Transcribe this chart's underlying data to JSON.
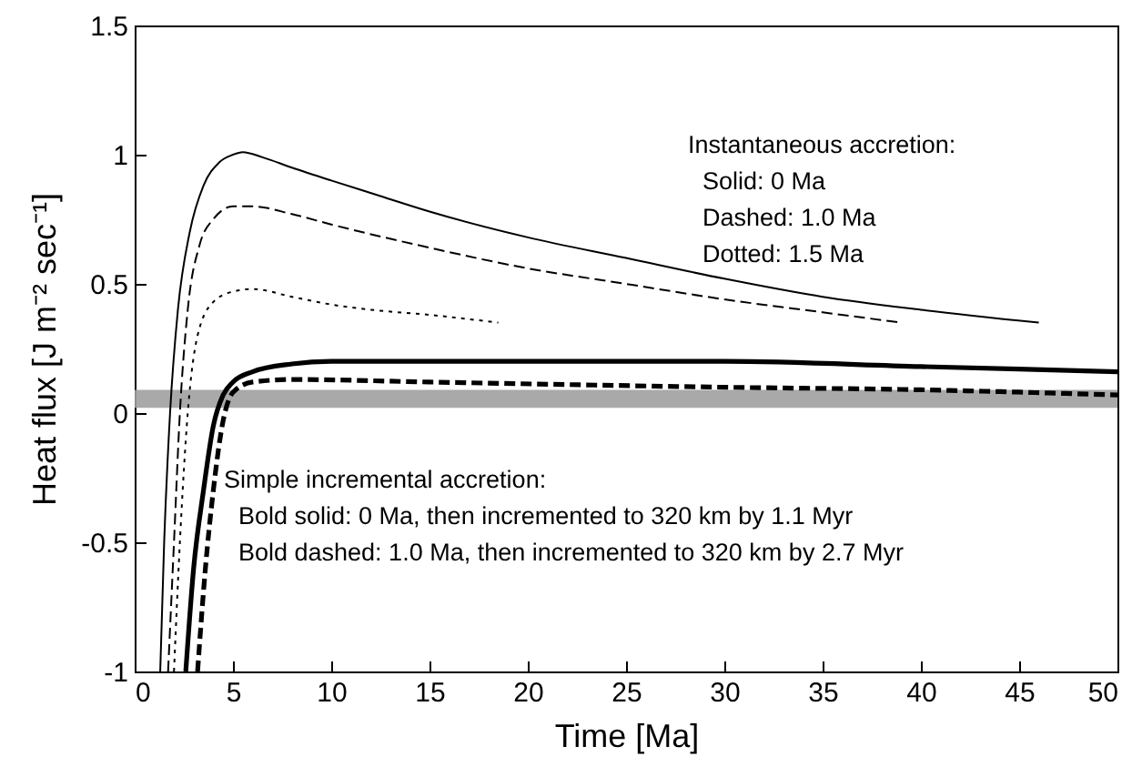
{
  "chart_data": {
    "type": "line",
    "xlabel": "Time [Ma]",
    "ylabel": "Heat flux [J m⁻² sec⁻¹]",
    "xlim": [
      0,
      50
    ],
    "xticks": [
      0,
      5,
      10,
      15,
      20,
      25,
      30,
      35,
      40,
      45,
      50
    ],
    "ylim": [
      -1,
      1.5
    ],
    "yticks": [
      -1,
      -0.5,
      0,
      0.5,
      1,
      1.5
    ],
    "grid": false,
    "series": [
      {
        "color": "#000000",
        "line_style": "solid",
        "x": [
          1.3,
          1.5,
          1.8,
          2.2,
          2.8,
          3.5,
          4.3,
          5,
          5.5,
          6.5,
          8,
          10,
          12.5,
          15,
          20,
          25,
          30,
          35,
          40,
          46
        ],
        "values": [
          -1,
          -0.5,
          0,
          0.4,
          0.7,
          0.88,
          0.97,
          1.0,
          1.01,
          0.99,
          0.95,
          0.9,
          0.84,
          0.78,
          0.68,
          0.6,
          0.52,
          0.45,
          0.4,
          0.35
        ]
      },
      {
        "color": "#000000",
        "line_style": "dashed",
        "x": [
          1.7,
          2,
          2.3,
          2.7,
          3.3,
          4,
          5,
          6,
          8,
          10,
          15,
          20,
          25,
          30,
          35,
          39
        ],
        "values": [
          -1,
          -0.5,
          0,
          0.4,
          0.65,
          0.75,
          0.8,
          0.8,
          0.77,
          0.73,
          0.64,
          0.56,
          0.5,
          0.44,
          0.39,
          0.35
        ]
      },
      {
        "color": "#000000",
        "line_style": "dotted",
        "x": [
          2,
          2.3,
          2.7,
          3.2,
          4,
          5,
          6,
          8,
          10,
          12,
          15,
          18.5
        ],
        "values": [
          -1,
          -0.5,
          0,
          0.3,
          0.43,
          0.47,
          0.48,
          0.45,
          0.42,
          0.4,
          0.38,
          0.35
        ]
      },
      {
        "color": "#000000",
        "line_style": "solid",
        "x": [
          2.6,
          3,
          3.5,
          4,
          4.5,
          5,
          6,
          8,
          10,
          15,
          20,
          30,
          40,
          50
        ],
        "values": [
          -1,
          -0.6,
          -0.3,
          -0.05,
          0.07,
          0.12,
          0.16,
          0.19,
          0.2,
          0.2,
          0.2,
          0.2,
          0.18,
          0.16
        ]
      },
      {
        "color": "#000000",
        "line_style": "dashed",
        "x": [
          3.2,
          3.6,
          4,
          4.5,
          5,
          6,
          8,
          15,
          30,
          40,
          50
        ],
        "values": [
          -1,
          -0.6,
          -0.3,
          -0.03,
          0.08,
          0.12,
          0.13,
          0.12,
          0.1,
          0.09,
          0.07
        ]
      }
    ],
    "bands": [
      {
        "axis": "y",
        "from": 0.02,
        "to": 0.09,
        "color": "#a0a0a0"
      }
    ],
    "annotations": [
      "Instantaneous accretion:",
      "Solid: 0 Ma",
      "Dashed: 1.0 Ma",
      "Dotted: 1.5 Ma",
      "Simple incremental accretion:",
      "Bold solid: 0 Ma, then incremented to 320 km by 1.1 Myr",
      "Bold dashed: 1.0 Ma, then incremented to 320 km by 2.7 Myr"
    ]
  }
}
